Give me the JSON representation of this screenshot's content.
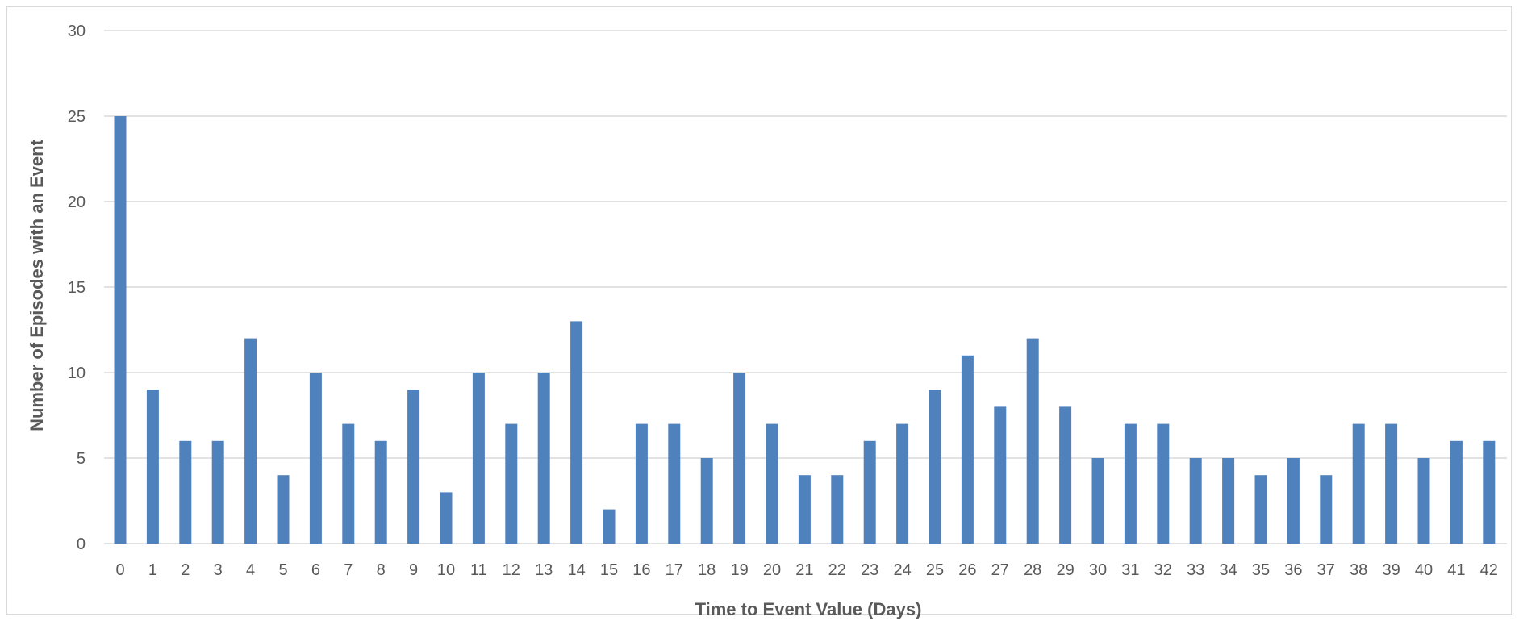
{
  "chart_data": {
    "type": "bar",
    "title": "",
    "xlabel": "Time to Event Value (Days)",
    "ylabel": "Number of Episodes with an Event",
    "ylim": [
      0,
      30
    ],
    "yticks": [
      0,
      5,
      10,
      15,
      20,
      25,
      30
    ],
    "grid": true,
    "legend": "none",
    "bar_color": "#4f81bd",
    "grid_color": "#d9d9d9",
    "categories": [
      "0",
      "1",
      "2",
      "3",
      "4",
      "5",
      "6",
      "7",
      "8",
      "9",
      "10",
      "11",
      "12",
      "13",
      "14",
      "15",
      "16",
      "17",
      "18",
      "19",
      "20",
      "21",
      "22",
      "23",
      "24",
      "25",
      "26",
      "27",
      "28",
      "29",
      "30",
      "31",
      "32",
      "33",
      "34",
      "35",
      "36",
      "37",
      "38",
      "39",
      "40",
      "41",
      "42"
    ],
    "values": [
      25,
      9,
      6,
      6,
      12,
      4,
      10,
      7,
      6,
      9,
      3,
      10,
      7,
      10,
      13,
      2,
      7,
      7,
      5,
      10,
      7,
      4,
      4,
      6,
      7,
      9,
      11,
      8,
      12,
      8,
      5,
      7,
      7,
      5,
      5,
      4,
      5,
      4,
      7,
      7,
      5,
      6,
      6
    ]
  }
}
